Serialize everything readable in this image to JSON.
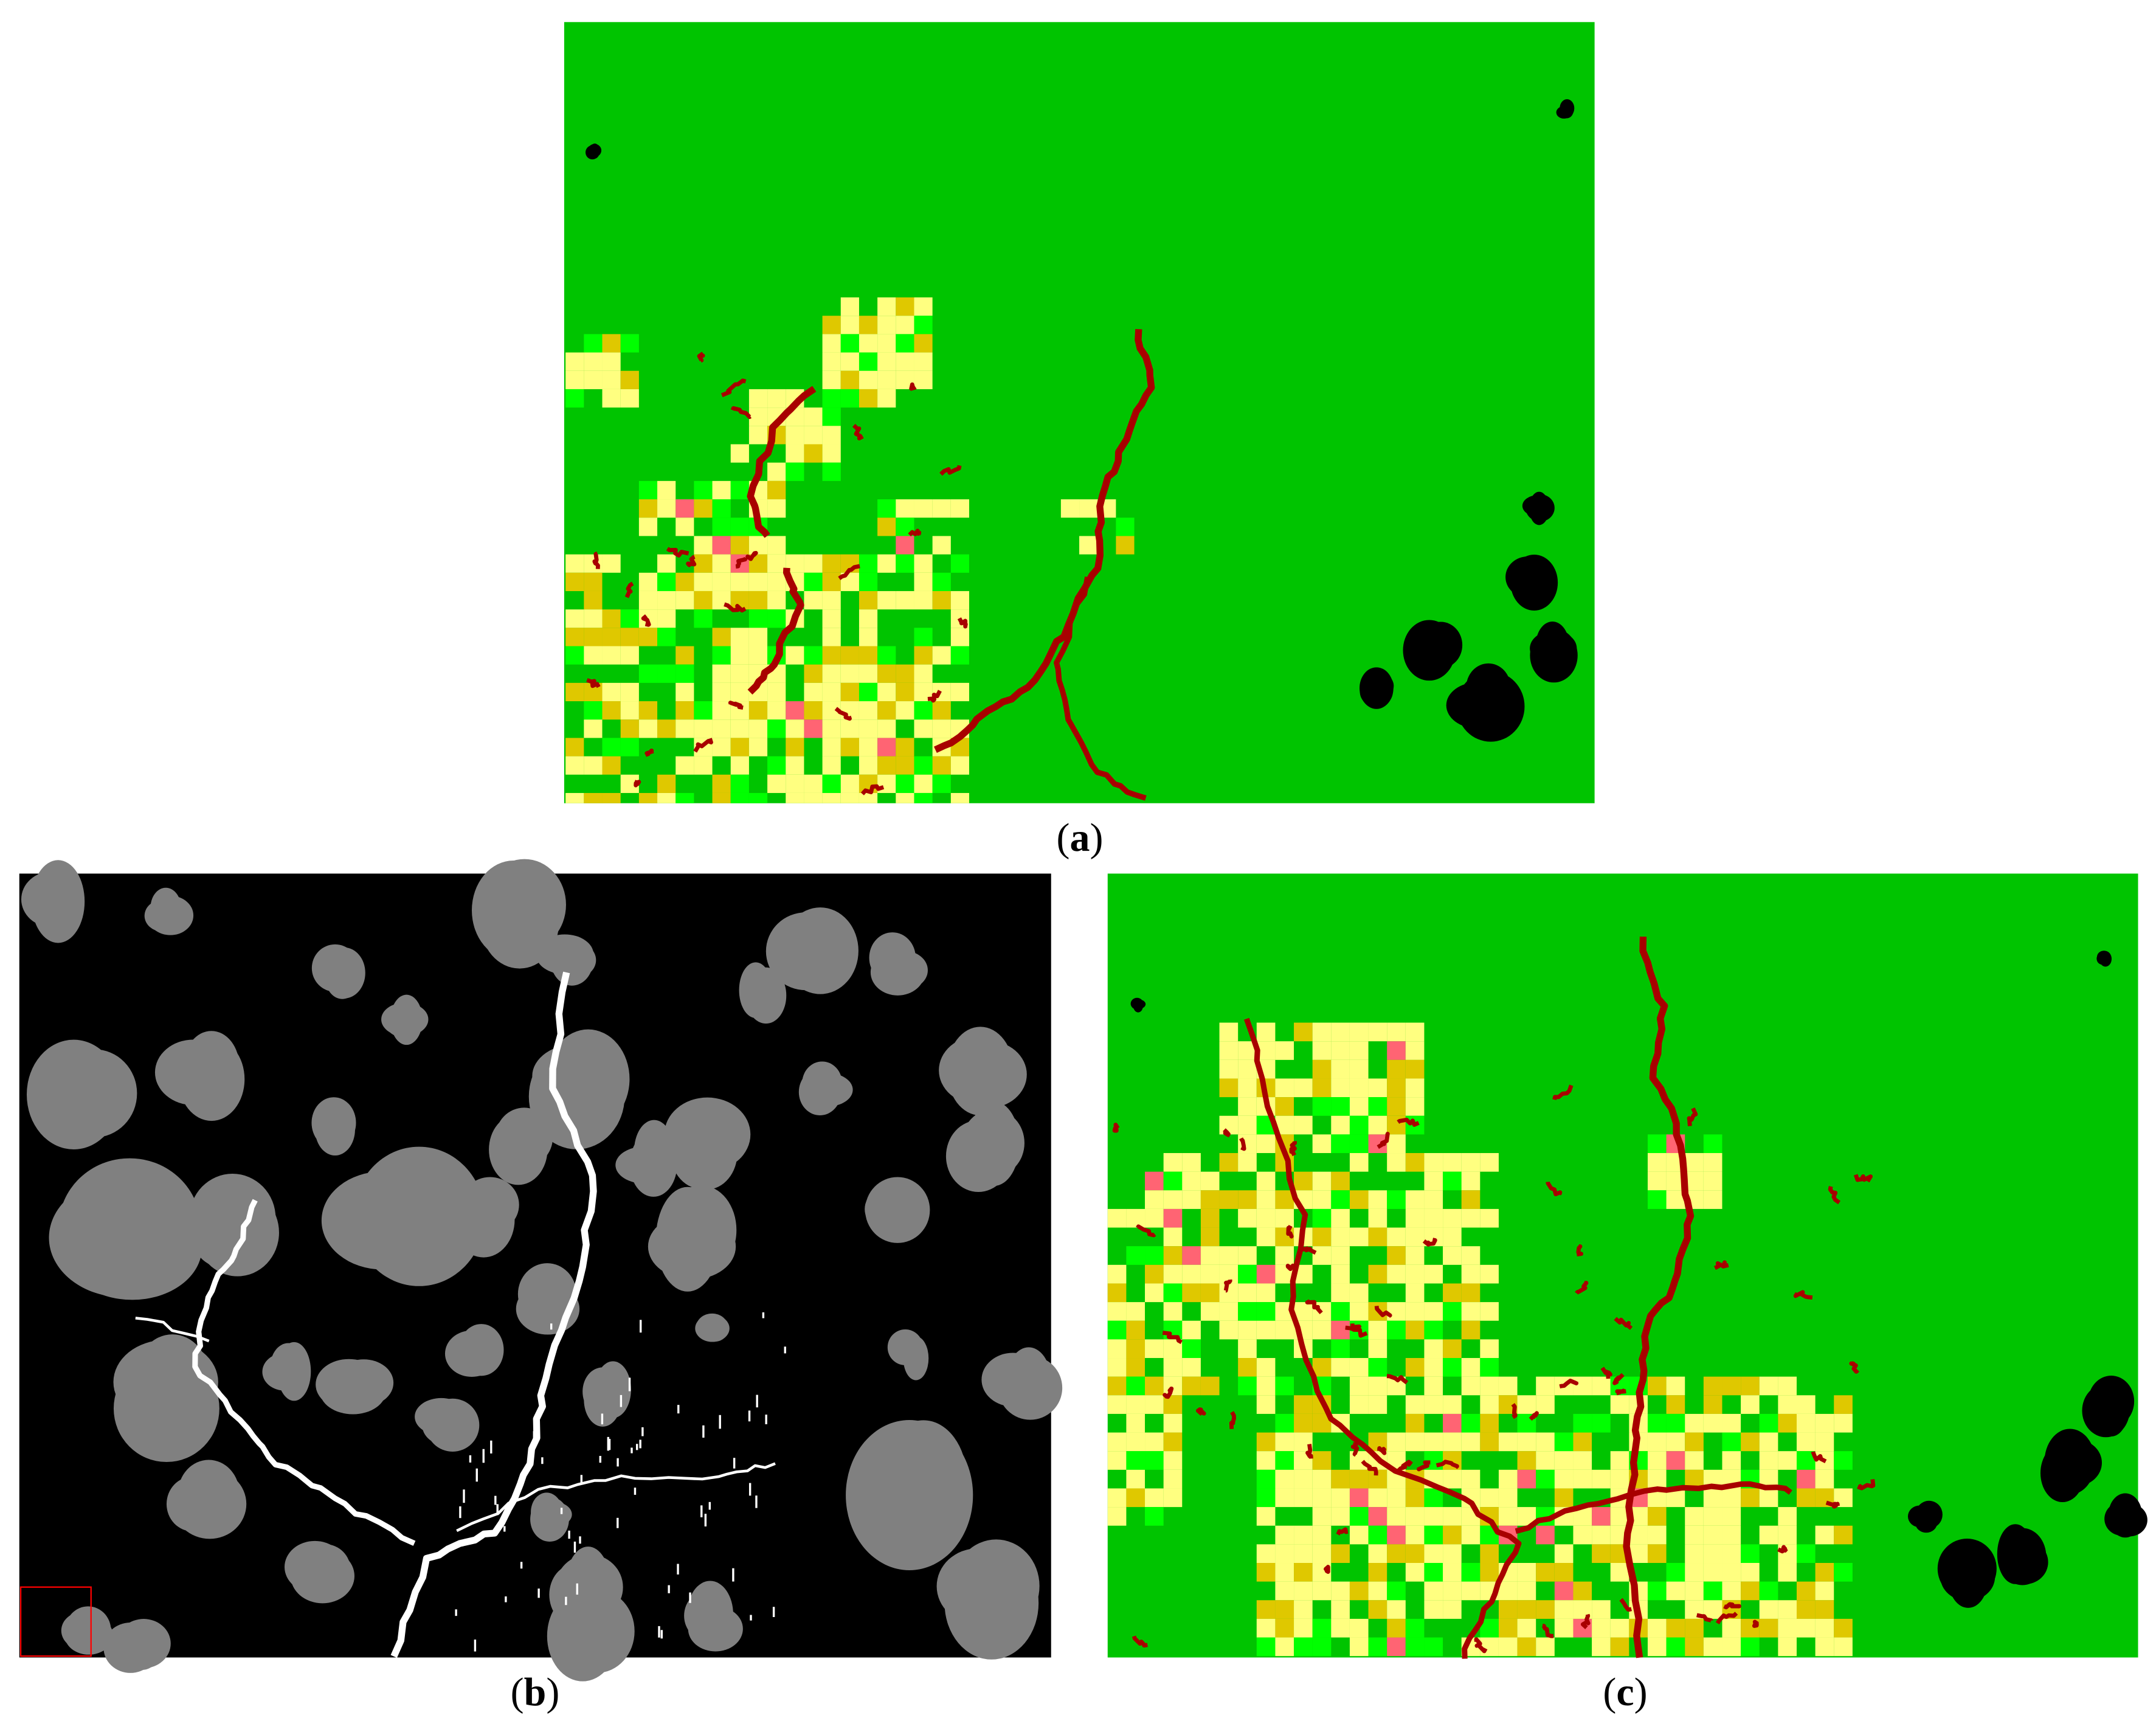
{
  "panels": [
    {
      "id": "a",
      "label_open": "(",
      "label_letter": "a",
      "label_close": ")"
    },
    {
      "id": "b",
      "label_open": "(",
      "label_letter": "b",
      "label_close": ")"
    },
    {
      "id": "c",
      "label_open": "(",
      "label_letter": "c",
      "label_close": ")"
    }
  ],
  "colors": {
    "background_green": "#00c400",
    "light_green": "#00ff00",
    "light_yellow": "#ffff80",
    "gold": "#dfc800",
    "pink": "#ff6473",
    "dark_red": "#a80000",
    "black": "#000000",
    "gray": "#808080",
    "white": "#ffffff",
    "inset_box": "#ff0000"
  }
}
